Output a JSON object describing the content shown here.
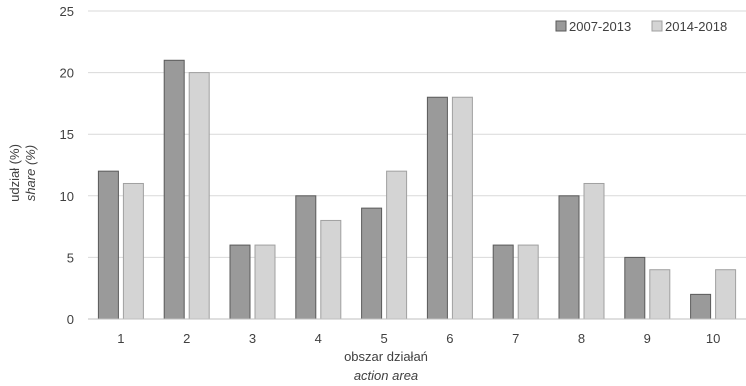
{
  "chart_data": {
    "type": "bar",
    "categories": [
      "1",
      "2",
      "3",
      "4",
      "5",
      "6",
      "7",
      "8",
      "9",
      "10"
    ],
    "series": [
      {
        "name": "2007-2013",
        "values": [
          12,
          21,
          6,
          10,
          9,
          18,
          6,
          10,
          5,
          2
        ],
        "color": "#9a9a9a"
      },
      {
        "name": "2014-2018",
        "values": [
          11,
          20,
          6,
          8,
          12,
          18,
          6,
          11,
          4,
          4
        ],
        "color": "#d4d4d4"
      }
    ],
    "ylim": [
      0,
      25
    ],
    "yticks": [
      0,
      5,
      10,
      15,
      20,
      25
    ],
    "ylabel": "udział (%)",
    "ylabel_en": "share (%)",
    "xlabel": "obszar działań",
    "xlabel_en": "action area",
    "grid": true,
    "legend": "top-right"
  }
}
